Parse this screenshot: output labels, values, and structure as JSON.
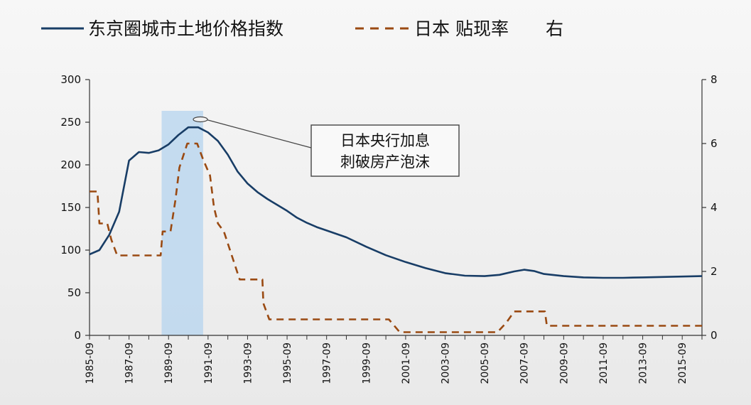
{
  "chart_data": {
    "type": "line",
    "annotation": {
      "lines": [
        "日本央行加息",
        "刺破房产泡沫"
      ]
    },
    "highlight_band": {
      "x_start": 1989.4,
      "x_end": 1991.5,
      "color": "#bcd7ee"
    },
    "xlim": [
      1985.75,
      2016.75
    ],
    "x_ticks": [
      "1985-09",
      "1987-09",
      "1989-09",
      "1991-09",
      "1993-09",
      "1995-09",
      "1997-09",
      "1999-09",
      "2001-09",
      "2003-09",
      "2005-09",
      "2007-09",
      "2009-09",
      "2011-09",
      "2013-09",
      "2015-09"
    ],
    "y_left": {
      "lim": [
        0,
        300
      ],
      "ticks": [
        0,
        50,
        100,
        150,
        200,
        250,
        300
      ]
    },
    "y_right": {
      "lim": [
        0,
        8
      ],
      "ticks": [
        0,
        2,
        4,
        6,
        8
      ]
    },
    "legend_placement": "top",
    "series": [
      {
        "name": "东京圈城市土地价格指数",
        "axis": "left",
        "style": "solid",
        "color": "#183d66",
        "points": [
          [
            1985.75,
            95
          ],
          [
            1986.25,
            100
          ],
          [
            1986.75,
            118
          ],
          [
            1987.25,
            145
          ],
          [
            1987.75,
            205
          ],
          [
            1988.25,
            215
          ],
          [
            1988.75,
            214
          ],
          [
            1989.25,
            217
          ],
          [
            1989.75,
            224
          ],
          [
            1990.25,
            235
          ],
          [
            1990.75,
            244
          ],
          [
            1991.25,
            244
          ],
          [
            1991.75,
            238
          ],
          [
            1992.25,
            228
          ],
          [
            1992.75,
            212
          ],
          [
            1993.25,
            192
          ],
          [
            1993.75,
            178
          ],
          [
            1994.25,
            168
          ],
          [
            1994.75,
            160
          ],
          [
            1995.25,
            153
          ],
          [
            1995.75,
            146
          ],
          [
            1996.25,
            138
          ],
          [
            1996.75,
            132
          ],
          [
            1997.25,
            127
          ],
          [
            1997.75,
            123
          ],
          [
            1998.75,
            115
          ],
          [
            1999.75,
            104
          ],
          [
            2000.75,
            94
          ],
          [
            2001.75,
            86
          ],
          [
            2002.75,
            79
          ],
          [
            2003.75,
            73
          ],
          [
            2004.75,
            70
          ],
          [
            2005.75,
            69.5
          ],
          [
            2006.5,
            71
          ],
          [
            2007.25,
            75
          ],
          [
            2007.75,
            77
          ],
          [
            2008.25,
            75.5
          ],
          [
            2008.75,
            72
          ],
          [
            2009.75,
            69.5
          ],
          [
            2010.75,
            68
          ],
          [
            2011.75,
            67.5
          ],
          [
            2012.75,
            67.5
          ],
          [
            2013.75,
            68
          ],
          [
            2014.75,
            68.5
          ],
          [
            2015.75,
            69
          ],
          [
            2016.75,
            69.5
          ]
        ]
      },
      {
        "name": "日本 贴现率",
        "legend_suffix": "右",
        "axis": "right",
        "style": "dashed",
        "color": "#9a4a12",
        "points": [
          [
            1985.75,
            4.5
          ],
          [
            1986.15,
            4.5
          ],
          [
            1986.25,
            3.5
          ],
          [
            1986.65,
            3.5
          ],
          [
            1986.85,
            3.0
          ],
          [
            1987.15,
            2.5
          ],
          [
            1989.35,
            2.5
          ],
          [
            1989.45,
            3.25
          ],
          [
            1989.85,
            3.25
          ],
          [
            1990.1,
            4.25
          ],
          [
            1990.3,
            5.25
          ],
          [
            1990.7,
            6.0
          ],
          [
            1991.2,
            6.0
          ],
          [
            1991.5,
            5.5
          ],
          [
            1991.85,
            5.0
          ],
          [
            1992.05,
            4.0
          ],
          [
            1992.25,
            3.5
          ],
          [
            1992.55,
            3.25
          ],
          [
            1992.95,
            2.5
          ],
          [
            1993.35,
            1.75
          ],
          [
            1994.5,
            1.75
          ],
          [
            1994.55,
            1.0
          ],
          [
            1994.85,
            0.5
          ],
          [
            2000.9,
            0.5
          ],
          [
            2001.45,
            0.1
          ],
          [
            2006.4,
            0.1
          ],
          [
            2006.85,
            0.4
          ],
          [
            2007.25,
            0.75
          ],
          [
            2008.8,
            0.75
          ],
          [
            2008.9,
            0.3
          ],
          [
            2016.75,
            0.3
          ]
        ]
      }
    ]
  }
}
